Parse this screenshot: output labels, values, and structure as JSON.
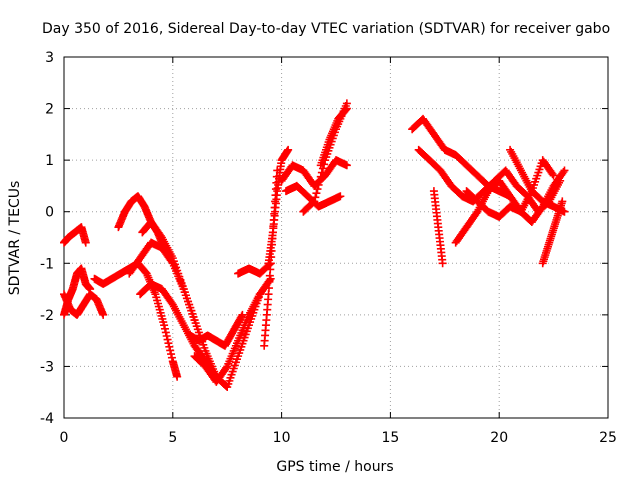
{
  "chart_data": {
    "type": "scatter",
    "title": "Day 350 of 2016, Sidereal Day-to-day VTEC variation (SDTVAR) for receiver gabo",
    "xlabel": "GPS time / hours",
    "ylabel": "SDTVAR / TECUs",
    "xlim": [
      0,
      25
    ],
    "ylim": [
      -4,
      3
    ],
    "xticks": [
      "0",
      "5",
      "10",
      "15",
      "20",
      "25"
    ],
    "yticks": [
      "-4",
      "-3",
      "-2",
      "-1",
      "0",
      "1",
      "2",
      "3"
    ],
    "grid": true,
    "marker": "+",
    "color": "#ff0000",
    "series": [
      {
        "name": "s1",
        "x": [
          0.0,
          0.2,
          0.5,
          0.8,
          1.0
        ],
        "y": [
          -0.6,
          -0.5,
          -0.4,
          -0.3,
          -0.6
        ]
      },
      {
        "name": "s2",
        "x": [
          0.0,
          0.2,
          0.4,
          0.6,
          0.8,
          1.0,
          1.2
        ],
        "y": [
          -2.0,
          -1.7,
          -1.5,
          -1.2,
          -1.1,
          -1.4,
          -1.5
        ]
      },
      {
        "name": "s3",
        "x": [
          0.0,
          0.3,
          0.6,
          0.9,
          1.2,
          1.5,
          1.8
        ],
        "y": [
          -1.6,
          -1.9,
          -2.0,
          -1.8,
          -1.6,
          -1.7,
          -2.0
        ]
      },
      {
        "name": "s4",
        "x": [
          1.4,
          1.8,
          2.2,
          2.6,
          3.0,
          3.4,
          3.8,
          4.2,
          4.6,
          5.0,
          5.2
        ],
        "y": [
          -1.3,
          -1.4,
          -1.3,
          -1.2,
          -1.1,
          -1.0,
          -1.2,
          -1.6,
          -2.2,
          -2.9,
          -3.2
        ]
      },
      {
        "name": "s5",
        "x": [
          2.5,
          2.8,
          3.1,
          3.4,
          3.7,
          4.0,
          4.3,
          4.6
        ],
        "y": [
          -0.3,
          0.0,
          0.2,
          0.3,
          0.1,
          -0.2,
          -0.4,
          -0.7
        ]
      },
      {
        "name": "s6",
        "x": [
          3.0,
          3.5,
          4.0,
          4.5,
          5.0,
          5.5,
          6.0,
          6.5,
          7.0,
          7.5,
          8.0,
          8.5,
          9.0
        ],
        "y": [
          -1.2,
          -0.9,
          -0.6,
          -0.7,
          -1.0,
          -1.5,
          -2.1,
          -2.7,
          -3.2,
          -3.4,
          -2.8,
          -2.2,
          -1.6
        ]
      },
      {
        "name": "s7",
        "x": [
          3.5,
          4.0,
          4.5,
          5.0,
          5.5,
          6.0,
          6.5,
          7.0
        ],
        "y": [
          -1.6,
          -1.4,
          -1.5,
          -1.8,
          -2.2,
          -2.6,
          -2.9,
          -3.2
        ]
      },
      {
        "name": "s8",
        "x": [
          3.6,
          4.0,
          4.5,
          5.0,
          5.5,
          6.0
        ],
        "y": [
          -0.4,
          -0.2,
          -0.5,
          -0.9,
          -1.5,
          -2.1
        ]
      },
      {
        "name": "s9",
        "x": [
          5.8,
          6.2,
          6.6,
          7.0,
          7.4,
          7.8,
          8.2
        ],
        "y": [
          -2.4,
          -2.5,
          -2.4,
          -2.5,
          -2.6,
          -2.3,
          -2.0
        ]
      },
      {
        "name": "s10",
        "x": [
          6.0,
          6.5,
          7.0,
          7.5,
          8.0,
          8.5,
          9.0,
          9.5
        ],
        "y": [
          -2.8,
          -3.0,
          -3.3,
          -3.0,
          -2.5,
          -2.0,
          -1.6,
          -1.3
        ]
      },
      {
        "name": "s11",
        "x": [
          8.0,
          8.5,
          9.0,
          9.5
        ],
        "y": [
          -1.2,
          -1.1,
          -1.2,
          -1.0
        ]
      },
      {
        "name": "s12",
        "x": [
          9.2,
          9.4,
          9.6,
          9.8
        ],
        "y": [
          -2.6,
          -1.6,
          -0.4,
          0.8
        ]
      },
      {
        "name": "s13",
        "x": [
          9.4,
          9.6,
          9.8,
          10.0,
          10.3
        ],
        "y": [
          -1.0,
          -0.4,
          0.4,
          1.0,
          1.2
        ]
      },
      {
        "name": "s14",
        "x": [
          10.0,
          10.5,
          11.0,
          11.5,
          12.0,
          12.5,
          13.0
        ],
        "y": [
          0.6,
          0.9,
          0.8,
          0.5,
          0.7,
          1.0,
          0.9
        ]
      },
      {
        "name": "s15",
        "x": [
          10.2,
          10.7,
          11.2,
          11.7,
          12.2,
          12.7
        ],
        "y": [
          0.4,
          0.5,
          0.3,
          0.1,
          0.2,
          0.3
        ]
      },
      {
        "name": "s16",
        "x": [
          11.0,
          11.5,
          12.0,
          12.5,
          13.0
        ],
        "y": [
          0.0,
          0.2,
          1.0,
          1.6,
          2.1
        ]
      },
      {
        "name": "s17",
        "x": [
          11.8,
          12.2,
          12.6,
          13.0
        ],
        "y": [
          0.9,
          1.4,
          1.8,
          2.0
        ]
      },
      {
        "name": "s18",
        "x": [
          16.0,
          16.5,
          17.0,
          17.5,
          18.0,
          18.5,
          19.0,
          19.5,
          20.0,
          20.5
        ],
        "y": [
          1.6,
          1.8,
          1.5,
          1.2,
          1.1,
          0.9,
          0.7,
          0.5,
          0.4,
          0.3
        ]
      },
      {
        "name": "s19",
        "x": [
          16.3,
          16.8,
          17.3,
          17.8,
          18.3,
          18.8,
          19.3,
          19.8,
          20.3,
          20.8,
          21.3,
          21.8,
          22.3,
          22.8
        ],
        "y": [
          1.2,
          1.0,
          0.8,
          0.5,
          0.3,
          0.2,
          0.4,
          0.6,
          0.8,
          0.5,
          0.3,
          0.0,
          0.2,
          0.6
        ]
      },
      {
        "name": "s20",
        "x": [
          17.0,
          17.2,
          17.4
        ],
        "y": [
          0.4,
          -0.3,
          -1.0
        ]
      },
      {
        "name": "s21",
        "x": [
          18.0,
          18.5,
          19.0,
          19.5,
          20.0,
          20.5,
          21.0,
          21.5,
          22.0,
          22.5
        ],
        "y": [
          -0.6,
          -0.3,
          0.0,
          0.4,
          0.6,
          0.3,
          0.0,
          0.4,
          1.0,
          0.7
        ]
      },
      {
        "name": "s22",
        "x": [
          18.5,
          19.0,
          19.5,
          20.0,
          20.5,
          21.0,
          21.5,
          22.0,
          22.5,
          23.0
        ],
        "y": [
          0.4,
          0.2,
          0.0,
          -0.1,
          0.1,
          0.0,
          -0.2,
          0.1,
          0.5,
          0.8
        ]
      },
      {
        "name": "s23",
        "x": [
          20.5,
          21.0,
          21.5,
          22.0,
          22.5,
          23.0
        ],
        "y": [
          1.2,
          0.8,
          0.4,
          0.2,
          0.1,
          0.0
        ]
      },
      {
        "name": "s24",
        "x": [
          22.0,
          22.3,
          22.6,
          22.9
        ],
        "y": [
          -1.0,
          -0.6,
          -0.2,
          0.2
        ]
      }
    ]
  }
}
